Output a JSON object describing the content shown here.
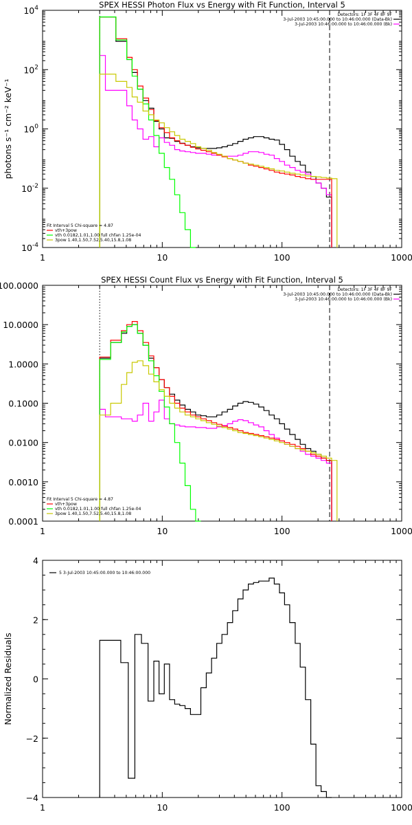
{
  "chart_data": [
    {
      "type": "line",
      "title": "SPEX HESSI Photon Flux vs Energy with Fit Function, Interval 5",
      "ylabel": "photons s⁻¹ cm⁻² keV⁻¹",
      "xscale": "log",
      "yscale": "log",
      "xlim": [
        1,
        1000
      ],
      "ylim": [
        0.0001,
        10000
      ],
      "xticks": [
        {
          "v": 1,
          "label": "1"
        },
        {
          "v": 10,
          "label": "10"
        },
        {
          "v": 100,
          "label": "100"
        },
        {
          "v": 1000,
          "label": "1000"
        }
      ],
      "yticks": [
        {
          "v": 0.0001,
          "base": "10",
          "exp": "-4"
        },
        {
          "v": 0.01,
          "base": "10",
          "exp": "-2"
        },
        {
          "v": 1,
          "base": "10",
          "exp": "0"
        },
        {
          "v": 100,
          "base": "10",
          "exp": "2"
        },
        {
          "v": 10000,
          "base": "10",
          "exp": "4"
        }
      ],
      "legend_top": [
        "Detectors: 1F 3F 4F 8F 9F",
        "3-Jul-2003 10:45:00.000 to 10:46:00.000 (Data-Bk)",
        "3-Jul-2003 10:46:00.000 to 10:46:00.000 (Bk)"
      ],
      "legend_top_colors": [
        "",
        "#000000",
        "#ff00ff"
      ],
      "legend_bottom": [
        "Fit Interval 5   Chi-square = 4.87",
        "vth+3pow",
        "vth 0.0182,1.01,1.00  full chfan 1.25e-04",
        "3pow 1.40,1.50,7.52,5.40,15.8,1.08"
      ],
      "legend_bottom_colors": [
        "",
        "#ff0000",
        "#00ff00",
        "#c8c800"
      ],
      "vlines": [
        {
          "x": 3,
          "style": "dotted"
        },
        {
          "x": 250,
          "style": "dashed"
        }
      ],
      "edges": [
        3,
        3.35,
        3.7,
        4.1,
        4.55,
        5.05,
        5.6,
        6.2,
        6.9,
        7.7,
        8.5,
        9.4,
        10.4,
        11.5,
        12.7,
        14,
        15.5,
        17.2,
        19,
        21,
        23.3,
        25.8,
        28.5,
        31.5,
        35,
        38.7,
        42.8,
        47.3,
        52.3,
        57.8,
        63.9,
        70.6,
        78,
        86.2,
        95.3,
        105,
        116,
        129,
        142,
        157,
        174,
        192,
        212,
        235,
        260,
        288
      ],
      "series": [
        {
          "name": "Data-Bk",
          "color": "#000000",
          "values": [
            6000,
            6000,
            6000,
            900,
            900,
            220,
            80,
            22,
            9,
            5,
            1.8,
            1.0,
            0.5,
            0.48,
            0.38,
            0.33,
            0.28,
            0.25,
            0.23,
            0.22,
            0.22,
            0.22,
            0.23,
            0.25,
            0.28,
            0.32,
            0.38,
            0.45,
            0.5,
            0.55,
            0.55,
            0.5,
            0.45,
            0.42,
            0.3,
            0.2,
            0.12,
            0.08,
            0.06,
            0.035,
            0.025,
            0.015,
            0.01,
            0.005,
            null
          ]
        },
        {
          "name": "Bk",
          "color": "#ff00ff",
          "values": [
            300,
            20,
            20,
            20,
            20,
            6,
            2,
            1,
            0.45,
            0.55,
            0.25,
            0.5,
            0.35,
            0.28,
            0.2,
            0.18,
            0.17,
            0.16,
            0.15,
            0.15,
            0.14,
            0.13,
            0.13,
            0.12,
            0.12,
            0.12,
            0.13,
            0.15,
            0.17,
            0.17,
            0.16,
            0.14,
            0.13,
            0.1,
            0.08,
            0.06,
            0.05,
            0.04,
            0.035,
            0.03,
            0.02,
            0.015,
            0.01,
            0.006,
            null
          ]
        },
        {
          "name": "vth+3pow",
          "color": "#ff0000",
          "values": [
            6000,
            6000,
            6000,
            1100,
            1100,
            260,
            100,
            28,
            11,
            4.5,
            1.9,
            1.1,
            0.75,
            0.5,
            0.4,
            0.32,
            0.28,
            0.24,
            0.21,
            0.19,
            0.17,
            0.15,
            0.13,
            0.115,
            0.1,
            0.09,
            0.08,
            0.07,
            0.06,
            0.055,
            0.05,
            0.045,
            0.04,
            0.035,
            0.032,
            0.03,
            0.028,
            0.025,
            0.023,
            0.021,
            0.02,
            0.02,
            0.02,
            0.02,
            null
          ]
        },
        {
          "name": "vth",
          "color": "#00ff00",
          "values": [
            6000,
            6000,
            6000,
            1000,
            1000,
            220,
            60,
            22,
            7,
            2,
            0.6,
            0.15,
            0.05,
            0.02,
            0.006,
            0.0015,
            0.0004,
            0.0001,
            null,
            null,
            null,
            null,
            null,
            null,
            null,
            null,
            null,
            null,
            null,
            null,
            null,
            null,
            null,
            null,
            null,
            null,
            null,
            null,
            null,
            null,
            null,
            null,
            null,
            null,
            null
          ]
        },
        {
          "name": "3pow",
          "color": "#c8c800",
          "values": [
            70,
            70,
            70,
            40,
            40,
            25,
            12,
            8,
            4,
            3,
            2,
            1.6,
            1.1,
            0.8,
            0.6,
            0.45,
            0.38,
            0.32,
            0.25,
            0.22,
            0.19,
            0.16,
            0.14,
            0.12,
            0.1,
            0.09,
            0.08,
            0.07,
            0.065,
            0.06,
            0.055,
            0.05,
            0.045,
            0.04,
            0.038,
            0.035,
            0.032,
            0.03,
            0.028,
            0.026,
            0.025,
            0.024,
            0.023,
            0.022,
            0.021
          ]
        }
      ]
    },
    {
      "type": "line",
      "title": "SPEX HESSI Count Flux vs Energy with Fit Function, Interval 5",
      "ylabel": "",
      "xscale": "log",
      "yscale": "log",
      "xlim": [
        1,
        1000
      ],
      "ylim": [
        0.0001,
        100
      ],
      "xticks": [
        {
          "v": 1,
          "label": "1"
        },
        {
          "v": 10,
          "label": "10"
        },
        {
          "v": 100,
          "label": "100"
        },
        {
          "v": 1000,
          "label": "1000"
        }
      ],
      "yticks": [
        {
          "v": 0.0001,
          "label": "0.0001"
        },
        {
          "v": 0.001,
          "label": "0.0010"
        },
        {
          "v": 0.01,
          "label": "0.0100"
        },
        {
          "v": 0.1,
          "label": "0.1000"
        },
        {
          "v": 1,
          "label": "1.0000"
        },
        {
          "v": 10,
          "label": "10.0000"
        },
        {
          "v": 100,
          "label": "100.0000"
        }
      ],
      "legend_top": [
        "Detectors: 1F 3F 4F 8F 9F",
        "3-Jul-2003 10:45:00.000 to 10:46:00.000 (Data-Bk)",
        "3-Jul-2003 10:46:00.000 to 10:46:00.000 (Bk)"
      ],
      "legend_top_colors": [
        "",
        "#000000",
        "#ff00ff"
      ],
      "legend_bottom": [
        "Fit Interval 5   Chi-square = 4.87",
        "vth+3pow",
        "vth 0.0182,1.01,1.00  full chfan 1.25e-04",
        "3pow 1.40,1.50,7.52,5.40,15.8,1.08"
      ],
      "legend_bottom_colors": [
        "",
        "#ff0000",
        "#00ff00",
        "#c8c800"
      ],
      "vlines": [
        {
          "x": 3,
          "style": "dotted"
        },
        {
          "x": 250,
          "style": "dashed"
        }
      ],
      "edges": [
        3,
        3.35,
        3.7,
        4.1,
        4.55,
        5.05,
        5.6,
        6.2,
        6.9,
        7.7,
        8.5,
        9.4,
        10.4,
        11.5,
        12.7,
        14,
        15.5,
        17.2,
        19,
        21,
        23.3,
        25.8,
        28.5,
        31.5,
        35,
        38.7,
        42.8,
        47.3,
        52.3,
        57.8,
        63.9,
        70.6,
        78,
        86.2,
        95.3,
        105,
        116,
        129,
        142,
        157,
        174,
        192,
        212,
        235,
        260,
        288
      ],
      "series": [
        {
          "name": "Data-Bk",
          "color": "#000000",
          "values": [
            1.4,
            1.4,
            3.5,
            3.5,
            6,
            9,
            10,
            6,
            3,
            1.4,
            0.8,
            0.4,
            0.25,
            0.17,
            0.12,
            0.09,
            0.07,
            0.06,
            0.05,
            0.048,
            0.045,
            0.045,
            0.05,
            0.06,
            0.07,
            0.085,
            0.1,
            0.11,
            0.105,
            0.095,
            0.08,
            0.065,
            0.05,
            0.04,
            0.03,
            0.022,
            0.016,
            0.012,
            0.009,
            0.007,
            0.006,
            0.005,
            0.004,
            0.0035,
            null
          ]
        },
        {
          "name": "Bk",
          "color": "#ff00ff",
          "values": [
            0.07,
            0.045,
            0.045,
            0.045,
            0.04,
            0.04,
            0.035,
            0.05,
            0.1,
            0.035,
            0.06,
            0.12,
            0.04,
            0.03,
            0.028,
            0.026,
            0.025,
            0.025,
            0.024,
            0.024,
            0.023,
            0.023,
            0.025,
            0.027,
            0.03,
            0.035,
            0.038,
            0.036,
            0.032,
            0.028,
            0.025,
            0.02,
            0.016,
            0.013,
            0.011,
            0.009,
            0.008,
            0.007,
            0.006,
            0.005,
            0.0045,
            0.004,
            0.0035,
            0.003,
            null
          ]
        },
        {
          "name": "vth+3pow",
          "color": "#ff0000",
          "values": [
            1.5,
            1.5,
            4,
            4,
            7,
            10,
            12,
            7,
            3.5,
            1.6,
            0.8,
            0.4,
            0.25,
            0.15,
            0.1,
            0.075,
            0.06,
            0.05,
            0.045,
            0.04,
            0.036,
            0.032,
            0.029,
            0.026,
            0.024,
            0.022,
            0.02,
            0.018,
            0.017,
            0.016,
            0.015,
            0.014,
            0.013,
            0.012,
            0.011,
            0.01,
            0.009,
            0.008,
            0.007,
            0.006,
            0.005,
            0.0045,
            0.004,
            0.0035,
            null
          ]
        },
        {
          "name": "vth",
          "color": "#00ff00",
          "values": [
            1.3,
            1.3,
            3.5,
            3.5,
            6.5,
            9,
            10,
            6,
            3,
            1.2,
            0.5,
            0.2,
            0.08,
            0.03,
            0.01,
            0.003,
            0.0008,
            0.0002,
            0.0001,
            null,
            null,
            null,
            null,
            null,
            null,
            null,
            null,
            null,
            null,
            null,
            null,
            null,
            null,
            null,
            null,
            null,
            null,
            null,
            null,
            null,
            null,
            null,
            null,
            null,
            null
          ]
        },
        {
          "name": "3pow",
          "color": "#c8c800",
          "values": [
            0.05,
            0.05,
            0.1,
            0.1,
            0.3,
            0.6,
            1.1,
            1.2,
            0.9,
            0.55,
            0.35,
            0.22,
            0.15,
            0.1,
            0.075,
            0.06,
            0.05,
            0.045,
            0.04,
            0.036,
            0.032,
            0.029,
            0.026,
            0.024,
            0.022,
            0.02,
            0.018,
            0.017,
            0.016,
            0.015,
            0.014,
            0.013,
            0.012,
            0.011,
            0.01,
            0.009,
            0.008,
            0.007,
            0.0065,
            0.006,
            0.0055,
            0.005,
            0.0045,
            0.004,
            0.0035
          ]
        }
      ]
    },
    {
      "type": "line",
      "title": "",
      "ylabel": "Normalized Residuals",
      "xscale": "log",
      "yscale": "linear",
      "xlim": [
        1,
        1000
      ],
      "ylim": [
        -4,
        4
      ],
      "xticks": [
        {
          "v": 1,
          "label": "1"
        },
        {
          "v": 10,
          "label": "10"
        },
        {
          "v": 100,
          "label": "100"
        },
        {
          "v": 1000,
          "label": "1000"
        }
      ],
      "yticks": [
        {
          "v": -4,
          "label": "−4"
        },
        {
          "v": -2,
          "label": "−2"
        },
        {
          "v": 0,
          "label": "0"
        },
        {
          "v": 2,
          "label": "2"
        },
        {
          "v": 4,
          "label": "4"
        }
      ],
      "legend_top": [],
      "legend_bottom": [],
      "inner_legend": "5  3-Jul-2003 10:45:00.000 to 10:46:00.000",
      "vlines": [],
      "edges": [
        3,
        4,
        4.5,
        5.2,
        5.9,
        6.7,
        7.6,
        8.5,
        9.4,
        10.4,
        11.5,
        12.7,
        14,
        15.5,
        17.2,
        19,
        21,
        23.3,
        25.8,
        28.5,
        31.5,
        35,
        38.7,
        42.8,
        47.3,
        52.3,
        57.8,
        63.9,
        70.6,
        78,
        86.2,
        95.3,
        105,
        116,
        129,
        142,
        157,
        174,
        192,
        212,
        235,
        260
      ],
      "series": [
        {
          "name": "5",
          "color": "#000000",
          "values": [
            1.3,
            1.3,
            0.55,
            -3.35,
            1.5,
            1.2,
            -0.75,
            0.6,
            -0.5,
            0.5,
            -0.7,
            -0.85,
            -0.9,
            -1.0,
            -1.2,
            -1.2,
            -0.3,
            0.2,
            0.7,
            1.2,
            1.5,
            1.9,
            2.3,
            2.7,
            3.0,
            3.2,
            3.25,
            3.3,
            3.3,
            3.4,
            3.2,
            2.9,
            2.5,
            1.9,
            1.2,
            0.4,
            -0.7,
            -2.2,
            -3.6,
            -3.8,
            -4.0
          ]
        }
      ]
    }
  ]
}
